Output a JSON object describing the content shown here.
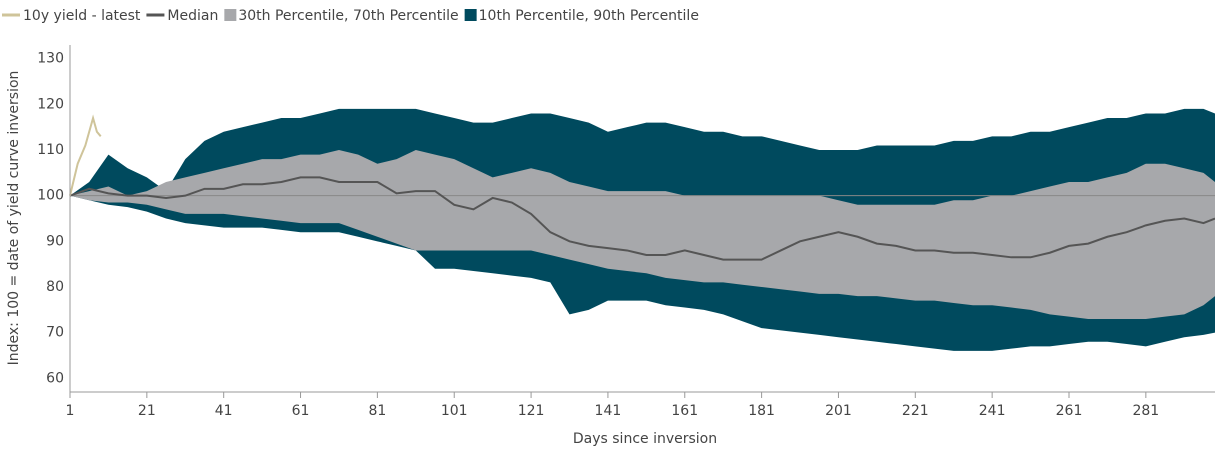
{
  "chart_data": {
    "type": "band-line",
    "x_label": "Days since inversion",
    "y_label": "Index: 100 = date of yield curve inversion",
    "xlim": [
      1,
      299
    ],
    "xticks": [
      1,
      21,
      41,
      61,
      81,
      101,
      121,
      141,
      161,
      181,
      201,
      221,
      241,
      261,
      281
    ],
    "ylim": [
      57,
      133
    ],
    "yticks": [
      60,
      70,
      80,
      90,
      100,
      110,
      120,
      130
    ],
    "reference_line": 100,
    "x": [
      1,
      6,
      11,
      16,
      21,
      26,
      31,
      36,
      41,
      46,
      51,
      56,
      61,
      66,
      71,
      76,
      81,
      86,
      91,
      96,
      101,
      106,
      111,
      116,
      121,
      126,
      131,
      136,
      141,
      146,
      151,
      156,
      161,
      166,
      171,
      176,
      181,
      186,
      191,
      196,
      201,
      206,
      211,
      216,
      221,
      226,
      231,
      236,
      241,
      246,
      251,
      256,
      261,
      266,
      271,
      276,
      281,
      286,
      291,
      296,
      299
    ],
    "series": [
      {
        "name": "10y yield - latest",
        "kind": "line",
        "color": "#cfc49a",
        "x": [
          1,
          3,
          5,
          7,
          8,
          9
        ],
        "values": [
          100,
          107,
          111,
          117,
          114,
          113
        ]
      },
      {
        "name": "Median",
        "kind": "line",
        "color": "#555555",
        "values": [
          100,
          101.5,
          100.5,
          100,
          100,
          99.5,
          100,
          101.5,
          101.5,
          102.5,
          102.5,
          103,
          104,
          104,
          103,
          103,
          103,
          100.5,
          101,
          101,
          98,
          97,
          99.5,
          98.5,
          96,
          92,
          90,
          89,
          88.5,
          88,
          87,
          87,
          88,
          87,
          86,
          86,
          86,
          88,
          90,
          91,
          92,
          91,
          89.5,
          89,
          88,
          88,
          87.5,
          87.5,
          87,
          86.5,
          86.5,
          87.5,
          89,
          89.5,
          91,
          92,
          93.5,
          94.5,
          95,
          94,
          95
        ]
      },
      {
        "name": "30th Percentile, 70th Percentile",
        "kind": "band",
        "color": "#a7a8ab",
        "low": [
          100,
          99,
          98.5,
          98.5,
          98,
          97,
          96,
          96,
          96,
          95.5,
          95,
          94.5,
          94,
          94,
          94,
          92.5,
          91,
          89.5,
          88,
          88,
          88,
          88,
          88,
          88,
          88,
          87,
          86,
          85,
          84,
          83.5,
          83,
          82,
          81.5,
          81,
          81,
          80.5,
          80,
          79.5,
          79,
          78.5,
          78.5,
          78,
          78,
          77.5,
          77,
          77,
          76.5,
          76,
          76,
          75.5,
          75,
          74,
          73.5,
          73,
          73,
          73,
          73,
          73.5,
          74,
          76,
          78
        ],
        "high": [
          100,
          101,
          102,
          100,
          101,
          103,
          104,
          105,
          106,
          107,
          108,
          108,
          109,
          109,
          110,
          109,
          107,
          108,
          110,
          109,
          108,
          106,
          104,
          105,
          106,
          105,
          103,
          102,
          101,
          101,
          101,
          101,
          100,
          100,
          100,
          100,
          100,
          100,
          100,
          100,
          99,
          98,
          98,
          98,
          98,
          98,
          99,
          99,
          100,
          100,
          101,
          102,
          103,
          103,
          104,
          105,
          107,
          107,
          106,
          105,
          103
        ]
      },
      {
        "name": "10th Percentile, 90th Percentile",
        "kind": "band",
        "color": "#004a5e",
        "low": [
          100,
          99,
          98,
          97.5,
          96.5,
          95,
          94,
          93.5,
          93,
          93,
          93,
          92.5,
          92,
          92,
          92,
          91,
          90,
          89,
          88,
          84,
          84,
          83.5,
          83,
          82.5,
          82,
          81,
          74,
          75,
          77,
          77,
          77,
          76,
          75.5,
          75,
          74,
          72.5,
          71,
          70.5,
          70,
          69.5,
          69,
          68.5,
          68,
          67.5,
          67,
          66.5,
          66,
          66,
          66,
          66.5,
          67,
          67,
          67.5,
          68,
          68,
          67.5,
          67,
          68,
          69,
          69.5,
          70
        ],
        "high": [
          100,
          103,
          109,
          106,
          104,
          101,
          108,
          112,
          114,
          115,
          116,
          117,
          117,
          118,
          119,
          119,
          119,
          119,
          119,
          118,
          117,
          116,
          116,
          117,
          118,
          118,
          117,
          116,
          114,
          115,
          116,
          116,
          115,
          114,
          114,
          113,
          113,
          112,
          111,
          110,
          110,
          110,
          111,
          111,
          111,
          111,
          112,
          112,
          113,
          113,
          114,
          114,
          115,
          116,
          117,
          117,
          118,
          118,
          119,
          119,
          118
        ]
      }
    ]
  }
}
